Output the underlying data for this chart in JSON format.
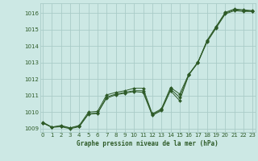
{
  "title": "Graphe pression niveau de la mer (hPa)",
  "bg_color": "#cce8e4",
  "grid_color": "#aaccc8",
  "line_color": "#2d5a27",
  "marker_color": "#2d5a27",
  "tick_color": "#2d5a27",
  "x_values": [
    0,
    1,
    2,
    3,
    4,
    5,
    6,
    7,
    8,
    9,
    10,
    11,
    12,
    13,
    14,
    15,
    16,
    17,
    18,
    19,
    20,
    21,
    22,
    23
  ],
  "series1": [
    1009.4,
    1009.1,
    1009.2,
    1009.05,
    1009.2,
    1010.0,
    1010.05,
    1011.05,
    1011.2,
    1011.3,
    1011.45,
    1011.45,
    1009.9,
    1010.2,
    1011.5,
    1011.1,
    1012.3,
    1013.0,
    1014.35,
    1015.2,
    1016.05,
    1016.25,
    1016.2,
    1016.15
  ],
  "series2": [
    1009.35,
    1009.1,
    1009.15,
    1009.05,
    1009.15,
    1009.9,
    1009.95,
    1010.85,
    1011.05,
    1011.15,
    1011.25,
    1011.2,
    1009.8,
    1010.1,
    1011.3,
    1010.7,
    1012.25,
    1013.0,
    1014.25,
    1015.1,
    1015.95,
    1016.15,
    1016.1,
    1016.1
  ],
  "series3": [
    1009.35,
    1009.08,
    1009.12,
    1009.0,
    1009.12,
    1009.88,
    1009.92,
    1010.92,
    1011.1,
    1011.2,
    1011.3,
    1011.3,
    1009.85,
    1010.15,
    1011.4,
    1010.9,
    1012.28,
    1013.05,
    1014.3,
    1015.15,
    1016.0,
    1016.2,
    1016.15,
    1016.12
  ],
  "ylim_min": 1008.8,
  "ylim_max": 1016.6,
  "yticks": [
    1009,
    1010,
    1011,
    1012,
    1013,
    1014,
    1015,
    1016
  ],
  "xticks": [
    0,
    1,
    2,
    3,
    4,
    5,
    6,
    7,
    8,
    9,
    10,
    11,
    12,
    13,
    14,
    15,
    16,
    17,
    18,
    19,
    20,
    21,
    22,
    23
  ]
}
